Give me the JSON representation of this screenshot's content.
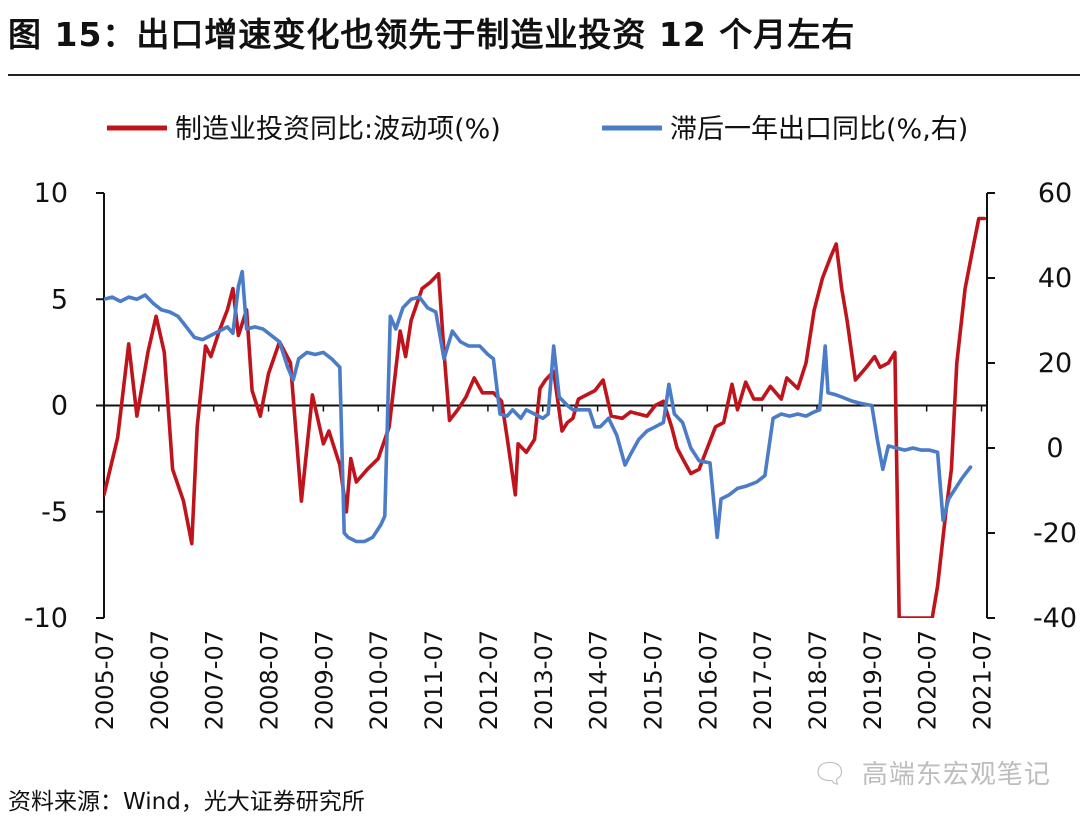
{
  "header": {
    "title": "图 15：出口增速变化也领先于制造业投资 12 个月左右"
  },
  "footer": {
    "source": "资料来源：Wind，光大证券研究所",
    "watermark": "高端东宏观笔记"
  },
  "colors": {
    "series_red": "#c0141c",
    "series_blue": "#4a7cc7",
    "axis": "#111111"
  },
  "chart_data": {
    "type": "line",
    "title": "出口增速变化也领先于制造业投资 12 个月左右",
    "xlabel": "",
    "ylabel_left": "制造业投资同比:波动项(%)",
    "ylabel_right": "滞后一年出口同比(%,右)",
    "ylim_left": [
      -10,
      10
    ],
    "yticks_left": [
      10,
      5,
      0,
      -5,
      -10
    ],
    "ylim_right": [
      -40,
      60
    ],
    "yticks_right": [
      60,
      40,
      20,
      0,
      -20,
      -40
    ],
    "x_tick_labels": [
      "2005-07",
      "2006-07",
      "2007-07",
      "2008-07",
      "2009-07",
      "2010-07",
      "2011-07",
      "2012-07",
      "2013-07",
      "2014-07",
      "2015-07",
      "2016-07",
      "2017-07",
      "2018-07",
      "2019-07",
      "2020-07",
      "2021-07"
    ],
    "legend_position": "top",
    "series": [
      {
        "name": "制造业投资同比:波动项(%)",
        "axis": "left",
        "color": "#c0141c",
        "points": [
          [
            2005.5,
            -4.2
          ],
          [
            2005.75,
            -1.5
          ],
          [
            2005.95,
            2.9
          ],
          [
            2006.1,
            -0.5
          ],
          [
            2006.3,
            2.5
          ],
          [
            2006.45,
            4.2
          ],
          [
            2006.6,
            2.5
          ],
          [
            2006.75,
            -3
          ],
          [
            2006.95,
            -4.5
          ],
          [
            2007.1,
            -6.5
          ],
          [
            2007.2,
            -1
          ],
          [
            2007.35,
            2.8
          ],
          [
            2007.45,
            2.3
          ],
          [
            2007.6,
            3.5
          ],
          [
            2007.75,
            4.5
          ],
          [
            2007.85,
            5.5
          ],
          [
            2007.95,
            3.3
          ],
          [
            2008.1,
            4.5
          ],
          [
            2008.2,
            0.7
          ],
          [
            2008.35,
            -0.5
          ],
          [
            2008.5,
            1.5
          ],
          [
            2008.7,
            3
          ],
          [
            2008.9,
            2
          ],
          [
            2009.1,
            -4.5
          ],
          [
            2009.3,
            0.5
          ],
          [
            2009.5,
            -1.8
          ],
          [
            2009.6,
            -1.2
          ],
          [
            2009.8,
            -2.8
          ],
          [
            2009.92,
            -5
          ],
          [
            2010.0,
            -2.5
          ],
          [
            2010.1,
            -3.6
          ],
          [
            2010.3,
            -3
          ],
          [
            2010.5,
            -2.5
          ],
          [
            2010.7,
            -1
          ],
          [
            2010.9,
            3.5
          ],
          [
            2011.0,
            2.3
          ],
          [
            2011.1,
            4
          ],
          [
            2011.3,
            5.5
          ],
          [
            2011.45,
            5.8
          ],
          [
            2011.6,
            6.2
          ],
          [
            2011.7,
            2.5
          ],
          [
            2011.8,
            -0.7
          ],
          [
            2011.95,
            -0.2
          ],
          [
            2012.1,
            0.4
          ],
          [
            2012.25,
            1.3
          ],
          [
            2012.4,
            0.6
          ],
          [
            2012.6,
            0.6
          ],
          [
            2012.75,
            0.2
          ],
          [
            2012.85,
            -1.5
          ],
          [
            2013.0,
            -4.2
          ],
          [
            2013.05,
            -1.8
          ],
          [
            2013.2,
            -2.2
          ],
          [
            2013.35,
            -1.6
          ],
          [
            2013.45,
            0.8
          ],
          [
            2013.55,
            1.2
          ],
          [
            2013.7,
            1.6
          ],
          [
            2013.85,
            -1.2
          ],
          [
            2013.95,
            -0.8
          ],
          [
            2014.05,
            -0.6
          ],
          [
            2014.15,
            0.3
          ],
          [
            2014.3,
            0.5
          ],
          [
            2014.45,
            0.7
          ],
          [
            2014.6,
            1.2
          ],
          [
            2014.75,
            -0.5
          ],
          [
            2014.95,
            -0.6
          ],
          [
            2015.1,
            -0.3
          ],
          [
            2015.25,
            -0.4
          ],
          [
            2015.4,
            -0.5
          ],
          [
            2015.55,
            0
          ],
          [
            2015.7,
            0.2
          ],
          [
            2015.85,
            -1
          ],
          [
            2015.95,
            -2
          ],
          [
            2016.05,
            -2.5
          ],
          [
            2016.2,
            -3.2
          ],
          [
            2016.35,
            -3
          ],
          [
            2016.5,
            -2
          ],
          [
            2016.65,
            -1
          ],
          [
            2016.8,
            -0.8
          ],
          [
            2016.95,
            1
          ],
          [
            2017.05,
            -0.2
          ],
          [
            2017.2,
            1.1
          ],
          [
            2017.35,
            0.3
          ],
          [
            2017.5,
            0.3
          ],
          [
            2017.65,
            0.9
          ],
          [
            2017.85,
            0.3
          ],
          [
            2017.95,
            1.3
          ],
          [
            2018.15,
            0.8
          ],
          [
            2018.3,
            2
          ],
          [
            2018.45,
            4.5
          ],
          [
            2018.6,
            6
          ],
          [
            2018.75,
            7
          ],
          [
            2018.85,
            7.6
          ],
          [
            2018.95,
            5.5
          ],
          [
            2019.05,
            4
          ],
          [
            2019.2,
            1.2
          ],
          [
            2019.4,
            1.8
          ],
          [
            2019.55,
            2.3
          ],
          [
            2019.65,
            1.8
          ],
          [
            2019.8,
            2
          ],
          [
            2019.92,
            2.5
          ],
          [
            2020.0,
            -10
          ],
          [
            2020.6,
            -10
          ],
          [
            2020.7,
            -8.5
          ],
          [
            2020.85,
            -5
          ],
          [
            2020.95,
            -3
          ],
          [
            2021.05,
            2
          ],
          [
            2021.2,
            5.5
          ],
          [
            2021.35,
            7.5
          ],
          [
            2021.45,
            8.8
          ],
          [
            2021.55,
            8.8
          ]
        ]
      },
      {
        "name": "滞后一年出口同比(%,右)",
        "axis": "right",
        "color": "#4a7cc7",
        "points": [
          [
            2005.5,
            35
          ],
          [
            2005.65,
            35.5
          ],
          [
            2005.8,
            34.5
          ],
          [
            2005.95,
            35.5
          ],
          [
            2006.1,
            35
          ],
          [
            2006.25,
            36
          ],
          [
            2006.4,
            34
          ],
          [
            2006.55,
            32.5
          ],
          [
            2006.7,
            32
          ],
          [
            2006.85,
            31
          ],
          [
            2007.0,
            28.5
          ],
          [
            2007.15,
            26
          ],
          [
            2007.3,
            25.5
          ],
          [
            2007.45,
            26.5
          ],
          [
            2007.6,
            27.5
          ],
          [
            2007.75,
            28.5
          ],
          [
            2007.85,
            27
          ],
          [
            2007.95,
            38
          ],
          [
            2008.02,
            41.5
          ],
          [
            2008.1,
            28
          ],
          [
            2008.25,
            28.5
          ],
          [
            2008.4,
            28
          ],
          [
            2008.55,
            26.5
          ],
          [
            2008.7,
            25
          ],
          [
            2008.85,
            19
          ],
          [
            2008.95,
            16
          ],
          [
            2009.05,
            21
          ],
          [
            2009.2,
            22.5
          ],
          [
            2009.35,
            22
          ],
          [
            2009.5,
            22.5
          ],
          [
            2009.65,
            21
          ],
          [
            2009.8,
            19
          ],
          [
            2009.88,
            -20
          ],
          [
            2009.95,
            -21
          ],
          [
            2010.1,
            -22
          ],
          [
            2010.25,
            -22
          ],
          [
            2010.4,
            -21
          ],
          [
            2010.55,
            -18
          ],
          [
            2010.62,
            -16
          ],
          [
            2010.72,
            31
          ],
          [
            2010.82,
            28
          ],
          [
            2010.95,
            33
          ],
          [
            2011.1,
            35
          ],
          [
            2011.25,
            35.5
          ],
          [
            2011.4,
            33
          ],
          [
            2011.55,
            32
          ],
          [
            2011.7,
            21
          ],
          [
            2011.85,
            27.5
          ],
          [
            2012.0,
            25
          ],
          [
            2012.15,
            24
          ],
          [
            2012.35,
            24
          ],
          [
            2012.5,
            22
          ],
          [
            2012.6,
            21
          ],
          [
            2012.72,
            8
          ],
          [
            2012.85,
            7.5
          ],
          [
            2012.95,
            9
          ],
          [
            2013.1,
            7
          ],
          [
            2013.2,
            9
          ],
          [
            2013.35,
            8
          ],
          [
            2013.5,
            7
          ],
          [
            2013.6,
            8
          ],
          [
            2013.7,
            24
          ],
          [
            2013.8,
            12
          ],
          [
            2013.95,
            10
          ],
          [
            2014.05,
            9
          ],
          [
            2014.2,
            9
          ],
          [
            2014.35,
            9
          ],
          [
            2014.45,
            5
          ],
          [
            2014.55,
            5
          ],
          [
            2014.7,
            7
          ],
          [
            2014.85,
            3
          ],
          [
            2015.0,
            -4
          ],
          [
            2015.1,
            -1.5
          ],
          [
            2015.25,
            2
          ],
          [
            2015.4,
            4
          ],
          [
            2015.55,
            5
          ],
          [
            2015.7,
            6
          ],
          [
            2015.8,
            15
          ],
          [
            2015.9,
            8
          ],
          [
            2016.05,
            6
          ],
          [
            2016.2,
            0
          ],
          [
            2016.35,
            -3
          ],
          [
            2016.55,
            -3.5
          ],
          [
            2016.68,
            -21
          ],
          [
            2016.75,
            -12
          ],
          [
            2016.9,
            -11
          ],
          [
            2017.05,
            -9.5
          ],
          [
            2017.2,
            -9
          ],
          [
            2017.4,
            -8
          ],
          [
            2017.55,
            -6.5
          ],
          [
            2017.7,
            7
          ],
          [
            2017.85,
            8
          ],
          [
            2018.0,
            7.5
          ],
          [
            2018.15,
            8
          ],
          [
            2018.3,
            7.5
          ],
          [
            2018.45,
            8.5
          ],
          [
            2018.55,
            9
          ],
          [
            2018.65,
            24
          ],
          [
            2018.7,
            13
          ],
          [
            2018.85,
            12.5
          ],
          [
            2018.95,
            12
          ],
          [
            2019.15,
            11
          ],
          [
            2019.3,
            10.5
          ],
          [
            2019.5,
            10
          ],
          [
            2019.6,
            2
          ],
          [
            2019.7,
            -5
          ],
          [
            2019.8,
            0.5
          ],
          [
            2019.95,
            0
          ],
          [
            2020.1,
            -0.5
          ],
          [
            2020.25,
            0
          ],
          [
            2020.4,
            -0.5
          ],
          [
            2020.55,
            -0.5
          ],
          [
            2020.7,
            -1
          ],
          [
            2020.8,
            -17
          ],
          [
            2020.9,
            -12
          ],
          [
            2021.0,
            -10
          ],
          [
            2021.15,
            -7
          ],
          [
            2021.3,
            -4.5
          ]
        ]
      }
    ]
  }
}
